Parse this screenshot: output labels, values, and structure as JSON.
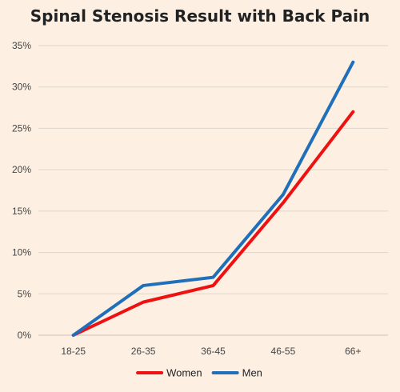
{
  "chart_data": {
    "type": "line",
    "title": "Spinal Stenosis Result with Back Pain",
    "xlabel": "",
    "ylabel": "",
    "categories": [
      "18-25",
      "26-35",
      "36-45",
      "46-55",
      "66+"
    ],
    "ylim": [
      0,
      35
    ],
    "yticks": [
      0,
      5,
      10,
      15,
      20,
      25,
      30,
      35
    ],
    "ytick_labels": [
      "0%",
      "5%",
      "10%",
      "15%",
      "20%",
      "25%",
      "30%",
      "35%"
    ],
    "grid": "horizontal",
    "legend_position": "bottom",
    "series": [
      {
        "name": "Women",
        "color": "#ee1111",
        "values": [
          0,
          4,
          6,
          16,
          27
        ]
      },
      {
        "name": "Men",
        "color": "#1f6fba",
        "values": [
          0,
          6,
          7,
          17,
          33
        ]
      }
    ]
  }
}
